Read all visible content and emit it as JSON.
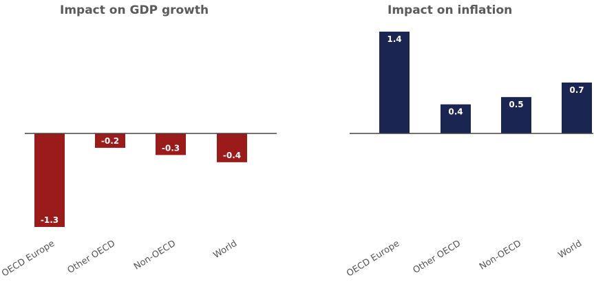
{
  "chart_data": [
    {
      "type": "bar",
      "title": "Impact on GDP growth",
      "categories": [
        "OECD Europe",
        "Other OECD",
        "Non-OECD",
        "World"
      ],
      "values": [
        -1.3,
        -0.2,
        -0.3,
        -0.4
      ],
      "value_labels": [
        "-1.3",
        "-0.2",
        "-0.3",
        "-0.4"
      ],
      "color": "#9b1a1a",
      "xlabel": "",
      "ylabel": "",
      "ylim": [
        -1.3,
        0
      ]
    },
    {
      "type": "bar",
      "title": "Impact on inflation",
      "categories": [
        "OECD Europe",
        "Other OECD",
        "Non-OECD",
        "World"
      ],
      "values": [
        1.4,
        0.4,
        0.5,
        0.7
      ],
      "value_labels": [
        "1.4",
        "0.4",
        "0.5",
        "0.7"
      ],
      "color": "#1b2552",
      "xlabel": "",
      "ylabel": "",
      "ylim": [
        0,
        1.4
      ]
    }
  ]
}
